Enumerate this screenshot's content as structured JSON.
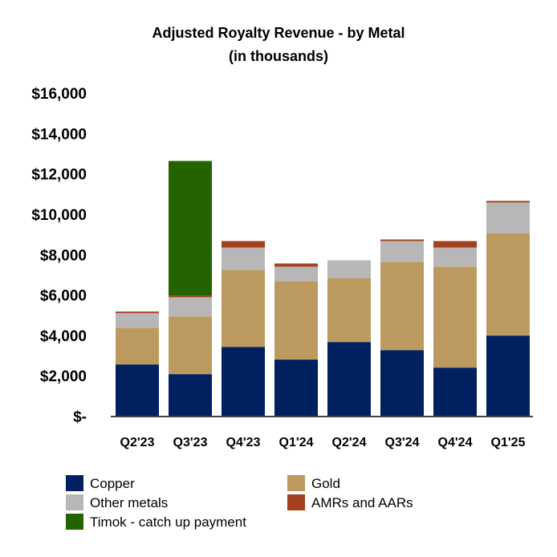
{
  "chart_data": {
    "type": "bar",
    "stacked": true,
    "title": "Adjusted Royalty Revenue - by Metal",
    "subtitle": "(in thousands)",
    "categories": [
      "Q2'23",
      "Q3'23",
      "Q4'23",
      "Q1'24",
      "Q2'24",
      "Q3'24",
      "Q4'24",
      "Q1'25"
    ],
    "series": [
      {
        "name": "Copper",
        "color": "#002060",
        "values": [
          2560,
          2080,
          3430,
          2800,
          3670,
          3270,
          2400,
          3990
        ]
      },
      {
        "name": "Gold",
        "color": "#BC9A5F",
        "values": [
          1820,
          2860,
          3810,
          3890,
          3170,
          4370,
          5000,
          5080
        ]
      },
      {
        "name": "Other metals",
        "color": "#B7B7B7",
        "values": [
          720,
          950,
          1110,
          710,
          880,
          1030,
          950,
          1510
        ]
      },
      {
        "name": "AMRs and AARs",
        "color": "#A5401F",
        "values": [
          80,
          80,
          320,
          160,
          0,
          80,
          320,
          80
        ]
      },
      {
        "name": "Timok - catch up payment",
        "color": "#246400",
        "values": [
          0,
          6670,
          0,
          0,
          0,
          0,
          0,
          0
        ]
      }
    ],
    "ylim": [
      0,
      16000
    ],
    "yticks": [
      0,
      2000,
      4000,
      6000,
      8000,
      10000,
      12000,
      14000,
      16000
    ],
    "ytick_labels": [
      "$-",
      "$2,000",
      "$4,000",
      "$6,000",
      "$8,000",
      "$10,000",
      "$12,000",
      "$14,000",
      "$16,000"
    ],
    "grid": false,
    "legend_placement": "bottom"
  }
}
